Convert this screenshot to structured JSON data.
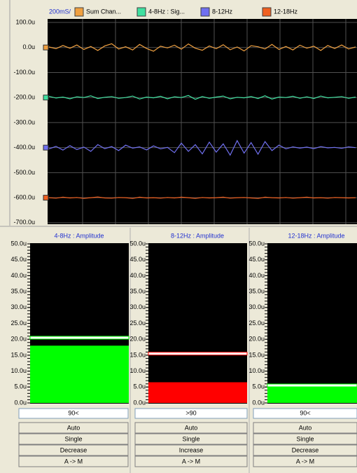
{
  "scope": {
    "timebase": "200mS/",
    "ylim": [
      -706,
      114
    ],
    "yticks": [
      {
        "value": 100,
        "label": "100.0u"
      },
      {
        "value": 0,
        "label": "0.0u"
      },
      {
        "value": -100,
        "label": "-100.0u"
      },
      {
        "value": -200,
        "label": "-200.0u"
      },
      {
        "value": -300,
        "label": "-300.0u"
      },
      {
        "value": -400,
        "label": "-400.0u"
      },
      {
        "value": -500,
        "label": "-500.0u"
      },
      {
        "value": -600,
        "label": "-600.0u"
      },
      {
        "value": -700,
        "label": "-700.0u"
      }
    ],
    "grid": true,
    "series": [
      {
        "name": "Sum Chan...",
        "color": "#f0a040",
        "baseline": 0,
        "values": [
          2,
          -5,
          8,
          -3,
          10,
          -8,
          4,
          -12,
          6,
          15,
          -6,
          3,
          -10,
          12,
          -4,
          -15,
          5,
          -2,
          9,
          -7,
          14,
          -3,
          -11,
          6,
          -5,
          11,
          -9,
          2,
          -14,
          7,
          3,
          -6,
          12,
          -8,
          4,
          -10,
          9,
          -3,
          5,
          -12,
          8,
          -4,
          10,
          -6,
          2
        ]
      },
      {
        "name": "4-8Hz : Sig...",
        "color": "#40e0a0",
        "baseline": -200,
        "values": [
          -195,
          -202,
          -198,
          -205,
          -197,
          -200,
          -193,
          -204,
          -199,
          -196,
          -203,
          -200,
          -194,
          -206,
          -198,
          -201,
          -195,
          -205,
          -197,
          -200,
          -192,
          -207,
          -196,
          -203,
          -198,
          -194,
          -205,
          -199,
          -201,
          -196,
          -204,
          -193,
          -206,
          -198,
          -200,
          -195,
          -203,
          -197,
          -204,
          -194,
          -201,
          -199,
          -196,
          -203,
          -198
        ]
      },
      {
        "name": "8-12Hz",
        "color": "#7070f0",
        "baseline": -400,
        "values": [
          -405,
          -395,
          -410,
          -392,
          -408,
          -398,
          -415,
          -388,
          -404,
          -396,
          -412,
          -390,
          -402,
          -397,
          -409,
          -393,
          -405,
          -399,
          -420,
          -382,
          -415,
          -388,
          -425,
          -378,
          -418,
          -385,
          -430,
          -372,
          -422,
          -380,
          -426,
          -376,
          -412,
          -390,
          -405,
          -397,
          -402,
          -398,
          -404,
          -396,
          -401,
          -399,
          -403,
          -397,
          -400
        ]
      },
      {
        "name": "12-18Hz",
        "color": "#f06020",
        "baseline": -600,
        "values": [
          -600,
          -602,
          -598,
          -601,
          -599,
          -603,
          -600,
          -597,
          -601,
          -602,
          -599,
          -600,
          -603,
          -598,
          -601,
          -600,
          -602,
          -599,
          -601,
          -598,
          -600,
          -603,
          -599,
          -601,
          -600,
          -598,
          -602,
          -600,
          -599,
          -601,
          -603,
          -598,
          -600,
          -601,
          -599,
          -602,
          -600,
          -598,
          -601,
          -600,
          -602,
          -599,
          -600,
          -601,
          -600
        ]
      }
    ]
  },
  "meter_scale": {
    "ylim": [
      0,
      50
    ],
    "minor_step": 1,
    "yticks": [
      {
        "value": 50,
        "label": "50.0u"
      },
      {
        "value": 45,
        "label": "45.0u"
      },
      {
        "value": 40,
        "label": "40.0u"
      },
      {
        "value": 35,
        "label": "35.0u"
      },
      {
        "value": 30,
        "label": "30.0u"
      },
      {
        "value": 25,
        "label": "25.0u"
      },
      {
        "value": 20,
        "label": "20.0u"
      },
      {
        "value": 15,
        "label": "15.0u"
      },
      {
        "value": 10,
        "label": "10.0u"
      },
      {
        "value": 5,
        "label": "5.0u"
      },
      {
        "value": 0,
        "label": "0.0u"
      }
    ]
  },
  "meters": [
    {
      "title": "4-8Hz : Amplitude",
      "value": 18,
      "threshold": 20.5,
      "color": "#00ff00",
      "field": "90<",
      "buttons": [
        "Auto",
        "Single",
        "Decrease",
        "A -> M"
      ]
    },
    {
      "title": "8-12Hz : Amplitude",
      "value": 6.5,
      "threshold": 15.5,
      "color": "#ff0000",
      "field": ">90",
      "buttons": [
        "Auto",
        "Single",
        "Increase",
        "A -> M"
      ]
    },
    {
      "title": "12-18Hz : Amplitude",
      "value": 5,
      "threshold": 5.5,
      "color": "#00ff00",
      "field": "90<",
      "buttons": [
        "Auto",
        "Single",
        "Decrease",
        "A -> M"
      ]
    }
  ]
}
